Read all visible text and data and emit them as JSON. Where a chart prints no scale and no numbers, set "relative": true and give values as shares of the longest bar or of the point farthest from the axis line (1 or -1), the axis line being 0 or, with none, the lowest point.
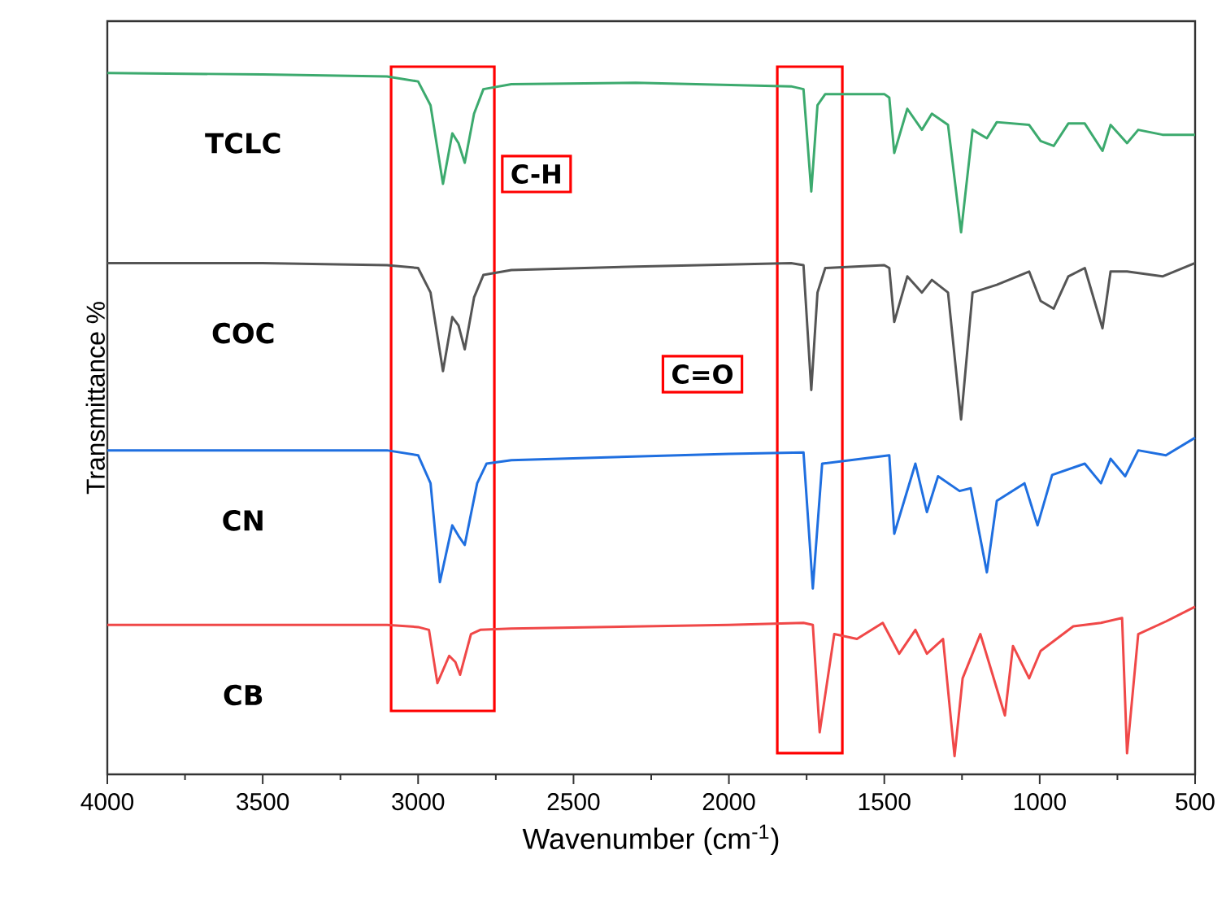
{
  "chart_data": {
    "type": "line",
    "relative": true,
    "xlabel": "Wavenumber (cm$^{-1}$)",
    "ylabel": "Transmittance %",
    "xlim": [
      4000,
      500
    ],
    "xticks": [
      4000,
      3500,
      3000,
      2500,
      2000,
      1500,
      1000,
      500
    ],
    "marker": "none",
    "line_style": "solid",
    "series": [
      {
        "name": "TCLC",
        "color": "#3caa6e",
        "x": [
          4000,
          3500,
          3100,
          3000,
          2960,
          2920,
          2890,
          2870,
          2850,
          2820,
          2790,
          2700,
          2300,
          1800,
          1760,
          1735,
          1715,
          1690,
          1500,
          1484,
          1468,
          1426,
          1379,
          1347,
          1295,
          1253,
          1216,
          1170,
          1138,
          1034,
          997,
          955,
          908,
          855,
          798,
          772,
          719,
          683,
          605,
          500
        ],
        "values": [
          1.0,
          0.998,
          0.995,
          0.988,
          0.954,
          0.842,
          0.914,
          0.9,
          0.872,
          0.942,
          0.977,
          0.984,
          0.986,
          0.981,
          0.977,
          0.831,
          0.954,
          0.97,
          0.97,
          0.965,
          0.886,
          0.949,
          0.919,
          0.942,
          0.926,
          0.773,
          0.919,
          0.907,
          0.93,
          0.926,
          0.903,
          0.896,
          0.928,
          0.928,
          0.889,
          0.926,
          0.9,
          0.919,
          0.912,
          0.912
        ]
      },
      {
        "name": "COC",
        "color": "#555555",
        "x": [
          4000,
          3500,
          3100,
          3000,
          2960,
          2920,
          2890,
          2870,
          2850,
          2820,
          2790,
          2700,
          2300,
          1800,
          1760,
          1735,
          1715,
          1690,
          1500,
          1484,
          1468,
          1426,
          1379,
          1347,
          1295,
          1253,
          1216,
          1138,
          1034,
          997,
          955,
          908,
          855,
          798,
          772,
          719,
          605,
          500
        ],
        "values": [
          0.729,
          0.729,
          0.726,
          0.722,
          0.687,
          0.575,
          0.652,
          0.64,
          0.606,
          0.68,
          0.712,
          0.719,
          0.724,
          0.729,
          0.726,
          0.548,
          0.687,
          0.722,
          0.726,
          0.722,
          0.645,
          0.71,
          0.687,
          0.705,
          0.687,
          0.506,
          0.687,
          0.698,
          0.717,
          0.675,
          0.664,
          0.71,
          0.722,
          0.636,
          0.717,
          0.717,
          0.71,
          0.729
        ]
      },
      {
        "name": "CN",
        "color": "#1f6fe0",
        "x": [
          4000,
          3500,
          3100,
          3000,
          2960,
          2930,
          2890,
          2870,
          2850,
          2810,
          2780,
          2700,
          2000,
          1760,
          1730,
          1700,
          1484,
          1468,
          1400,
          1363,
          1327,
          1258,
          1222,
          1170,
          1138,
          1049,
          1007,
          960,
          855,
          803,
          772,
          725,
          683,
          594,
          500
        ],
        "values": [
          0.462,
          0.462,
          0.462,
          0.455,
          0.415,
          0.274,
          0.355,
          0.34,
          0.327,
          0.415,
          0.443,
          0.448,
          0.457,
          0.459,
          0.265,
          0.443,
          0.455,
          0.343,
          0.443,
          0.374,
          0.425,
          0.404,
          0.408,
          0.288,
          0.39,
          0.415,
          0.355,
          0.427,
          0.443,
          0.415,
          0.45,
          0.425,
          0.462,
          0.455,
          0.48
        ]
      },
      {
        "name": "CB",
        "color": "#f04848",
        "x": [
          4000,
          3500,
          3100,
          3000,
          2965,
          2938,
          2900,
          2880,
          2865,
          2830,
          2800,
          2700,
          2000,
          1760,
          1730,
          1708,
          1661,
          1588,
          1505,
          1452,
          1400,
          1363,
          1311,
          1274,
          1248,
          1191,
          1112,
          1086,
          1034,
          997,
          892,
          803,
          735,
          719,
          683,
          594,
          500
        ],
        "values": [
          0.213,
          0.213,
          0.213,
          0.21,
          0.206,
          0.13,
          0.169,
          0.16,
          0.142,
          0.2,
          0.206,
          0.208,
          0.213,
          0.216,
          0.213,
          0.06,
          0.2,
          0.193,
          0.216,
          0.172,
          0.206,
          0.172,
          0.193,
          0.026,
          0.137,
          0.2,
          0.084,
          0.183,
          0.137,
          0.176,
          0.211,
          0.216,
          0.223,
          0.03,
          0.2,
          0.218,
          0.239
        ]
      }
    ],
    "annotations": [
      "C-H",
      "C=O"
    ]
  }
}
